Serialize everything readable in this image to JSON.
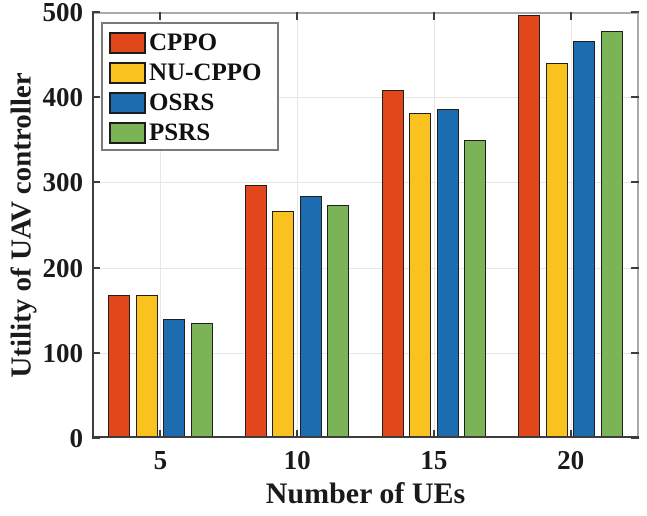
{
  "chart_data": {
    "type": "bar",
    "title": "",
    "xlabel": "Number of UEs",
    "ylabel": "Utility of UAV controller",
    "categories": [
      "5",
      "10",
      "15",
      "20"
    ],
    "series": [
      {
        "name": "CPPO",
        "color": "#E2471B",
        "values": [
          168,
          297,
          408,
          497
        ]
      },
      {
        "name": "NU-CPPO",
        "color": "#FAC21E",
        "values": [
          168,
          266,
          382,
          440
        ]
      },
      {
        "name": "OSRS",
        "color": "#1E6CB0",
        "values": [
          140,
          284,
          386,
          466
        ]
      },
      {
        "name": "PSRS",
        "color": "#7AB456",
        "values": [
          135,
          273,
          350,
          478
        ]
      }
    ],
    "ylim": [
      0,
      500
    ],
    "yticks": [
      "0",
      "100",
      "200",
      "300",
      "400",
      "500"
    ],
    "grid": true,
    "legend_position": "top-left",
    "legend_entries": [
      "CPPO",
      "NU-CPPO",
      "OSRS",
      "PSRS"
    ]
  }
}
